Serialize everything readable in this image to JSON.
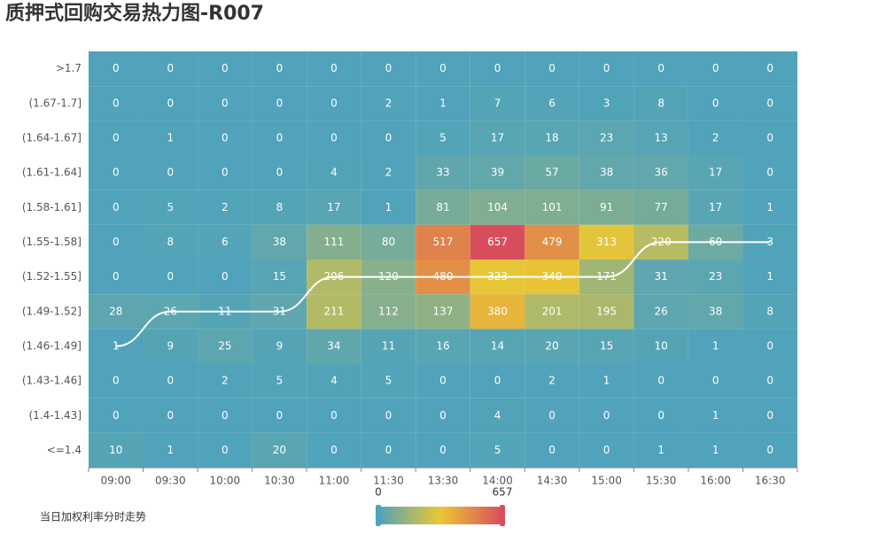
{
  "chart_data": {
    "type": "heatmap",
    "title": "质押式回购交易热力图-R007",
    "x_categories": [
      "09:00",
      "09:30",
      "10:00",
      "10:30",
      "11:00",
      "11:30",
      "13:30",
      "14:00",
      "14:30",
      "15:00",
      "15:30",
      "16:00",
      "16:30"
    ],
    "y_categories": [
      ">1.7",
      "(1.67-1.7]",
      "(1.64-1.67]",
      "(1.61-1.64]",
      "(1.58-1.61]",
      "(1.55-1.58]",
      "(1.52-1.55]",
      "(1.49-1.52]",
      "(1.46-1.49]",
      "(1.43-1.46]",
      "(1.4-1.43]",
      "<=1.4"
    ],
    "values": [
      [
        0,
        0,
        0,
        0,
        0,
        0,
        0,
        0,
        0,
        0,
        0,
        0,
        0
      ],
      [
        0,
        0,
        0,
        0,
        0,
        2,
        1,
        7,
        6,
        3,
        8,
        0,
        0
      ],
      [
        0,
        1,
        0,
        0,
        0,
        0,
        5,
        17,
        18,
        23,
        13,
        2,
        0
      ],
      [
        0,
        0,
        0,
        0,
        4,
        2,
        33,
        39,
        57,
        38,
        36,
        17,
        0
      ],
      [
        0,
        5,
        2,
        8,
        17,
        1,
        81,
        104,
        101,
        91,
        77,
        17,
        1
      ],
      [
        0,
        8,
        6,
        38,
        111,
        80,
        517,
        657,
        479,
        313,
        220,
        60,
        3
      ],
      [
        0,
        0,
        0,
        15,
        206,
        120,
        480,
        323,
        340,
        171,
        31,
        23,
        1
      ],
      [
        28,
        26,
        11,
        31,
        211,
        112,
        137,
        380,
        201,
        195,
        26,
        38,
        8
      ],
      [
        1,
        9,
        25,
        9,
        34,
        11,
        16,
        14,
        20,
        15,
        10,
        1,
        0
      ],
      [
        0,
        0,
        2,
        5,
        4,
        5,
        0,
        0,
        2,
        1,
        0,
        0,
        0
      ],
      [
        0,
        0,
        0,
        0,
        0,
        0,
        0,
        4,
        0,
        0,
        0,
        1,
        0
      ],
      [
        10,
        1,
        0,
        20,
        0,
        0,
        0,
        5,
        0,
        0,
        1,
        1,
        0
      ]
    ],
    "line": {
      "type": "line",
      "name": "当日加权利率分时走势",
      "color": "#ffffff",
      "values": [
        "(1.46-1.49]",
        "(1.49-1.52]",
        "(1.49-1.52]",
        "(1.49-1.52]",
        "(1.52-1.55]",
        "(1.52-1.55]",
        "(1.52-1.55]",
        "(1.52-1.55]",
        "(1.52-1.55]",
        "(1.52-1.55]",
        "(1.55-1.58]",
        "(1.55-1.58]",
        "(1.55-1.58]"
      ]
    },
    "visual_map": {
      "min": 0,
      "max": 657,
      "colors": [
        "#50a3ba",
        "#eac736",
        "#d94e5d"
      ]
    }
  }
}
